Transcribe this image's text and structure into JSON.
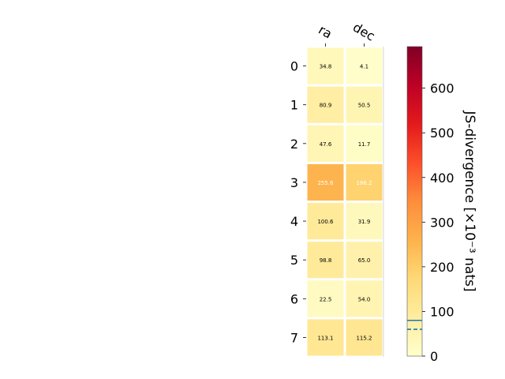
{
  "chart_data": {
    "type": "heatmap",
    "columns": [
      "ra",
      "dec"
    ],
    "rows": [
      "0",
      "1",
      "2",
      "3",
      "4",
      "5",
      "6",
      "7"
    ],
    "values": [
      [
        34.8,
        4.1
      ],
      [
        80.9,
        50.5
      ],
      [
        47.6,
        11.7
      ],
      [
        255.6,
        186.2
      ],
      [
        100.6,
        31.9
      ],
      [
        98.8,
        65.0
      ],
      [
        22.5,
        54.0
      ],
      [
        113.1,
        115.2
      ]
    ],
    "cell_labels": [
      [
        "34.8",
        "4.1"
      ],
      [
        "80.9",
        "50.5"
      ],
      [
        "47.6",
        "11.7"
      ],
      [
        "255.6",
        "186.2"
      ],
      [
        "100.6",
        "31.9"
      ],
      [
        "98.8",
        "65.0"
      ],
      [
        "22.5",
        "54.0"
      ],
      [
        "113.1",
        "115.2"
      ]
    ],
    "colorbar": {
      "label": "JS-divergence [×10⁻³ nats]",
      "range": [
        0,
        693.1
      ],
      "ticks": [
        0,
        100,
        200,
        300,
        400,
        500,
        600
      ],
      "tick_labels": [
        "0",
        "100",
        "200",
        "300",
        "400",
        "500",
        "600"
      ],
      "colormap": "YlOrRd",
      "reference_lines": [
        {
          "value": 80,
          "style": "solid",
          "color": "#1f77b4"
        },
        {
          "value": 60,
          "style": "dashed",
          "color": "#1f77b4"
        }
      ]
    }
  }
}
